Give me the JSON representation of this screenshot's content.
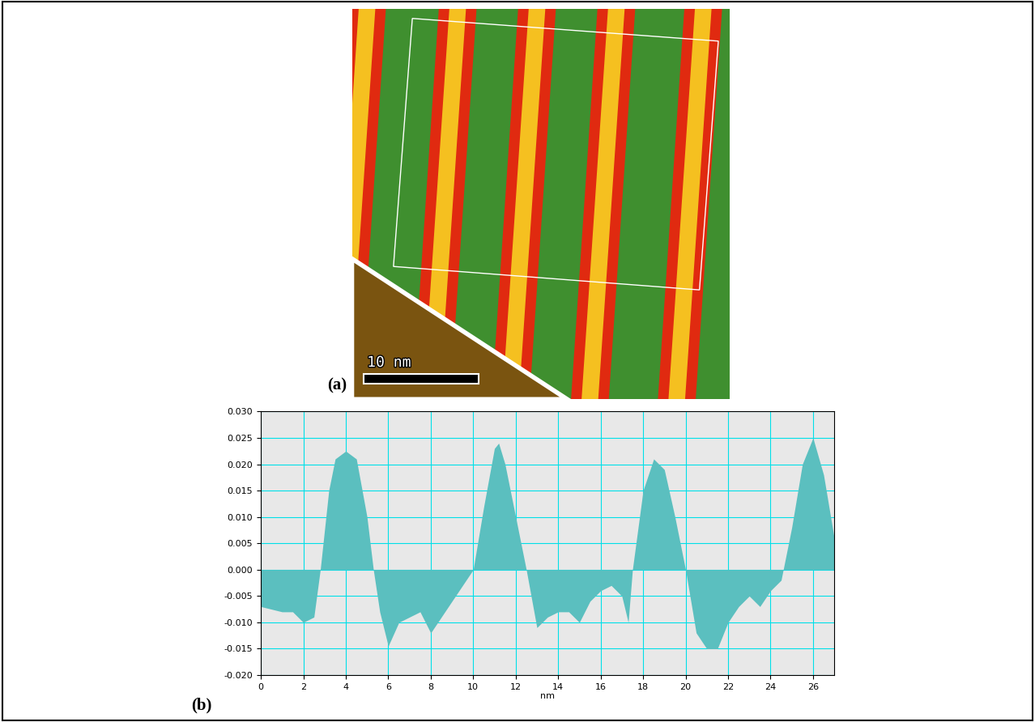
{
  "image_panel": {
    "label": "(a)",
    "scale_bar": "10 nm"
  },
  "chart_data": {
    "type": "area",
    "label": "(b)",
    "x_label": "nm",
    "x": [
      0,
      0.5,
      1,
      1.5,
      2,
      2.5,
      2.8,
      3.2,
      3.5,
      4,
      4.5,
      5,
      5.3,
      5.6,
      6,
      6.5,
      7,
      7.5,
      8,
      8.5,
      9,
      9.5,
      10,
      10.5,
      11,
      11.2,
      11.5,
      12,
      12.5,
      13,
      13.5,
      14,
      14.5,
      15,
      15.5,
      16,
      16.5,
      17,
      17.3,
      17.5,
      18,
      18.5,
      19,
      19.5,
      20,
      20.5,
      21,
      21.5,
      22,
      22.5,
      23,
      23.5,
      24,
      24.5,
      25,
      25.5,
      26,
      26.5,
      27
    ],
    "values": [
      -0.007,
      -0.0075,
      -0.008,
      -0.008,
      -0.01,
      -0.009,
      0.0,
      0.015,
      0.021,
      0.0225,
      0.021,
      0.01,
      0.0,
      -0.008,
      -0.0145,
      -0.01,
      -0.009,
      -0.008,
      -0.012,
      -0.009,
      -0.006,
      -0.003,
      0.0,
      0.012,
      0.023,
      0.024,
      0.02,
      0.01,
      0.0,
      -0.011,
      -0.009,
      -0.008,
      -0.008,
      -0.01,
      -0.006,
      -0.004,
      -0.003,
      -0.005,
      -0.01,
      0.0,
      0.015,
      0.021,
      0.019,
      0.01,
      0.0,
      -0.012,
      -0.015,
      -0.015,
      -0.01,
      -0.007,
      -0.005,
      -0.007,
      -0.004,
      -0.002,
      0.008,
      0.02,
      0.025,
      0.018,
      0.006
    ],
    "color": "#5bbfbf",
    "xlim": [
      0,
      27
    ],
    "xticks": [
      0,
      2,
      4,
      6,
      8,
      10,
      12,
      14,
      16,
      18,
      20,
      22,
      24,
      26
    ],
    "ylim": [
      -0.02,
      0.03
    ],
    "yticks": [
      {
        "value": -0.02,
        "label": "-0.020"
      },
      {
        "value": -0.015,
        "label": "-0.015"
      },
      {
        "value": -0.01,
        "label": "-0.010"
      },
      {
        "value": -0.005,
        "label": "-0.005"
      },
      {
        "value": 0,
        "label": "0.000"
      },
      {
        "value": 0.005,
        "label": "0.005"
      },
      {
        "value": 0.01,
        "label": "0.010"
      },
      {
        "value": 0.015,
        "label": "0.015"
      },
      {
        "value": 0.02,
        "label": "0.020"
      },
      {
        "value": 0.025,
        "label": "0.025"
      },
      {
        "value": 0.03,
        "label": "0.030"
      }
    ],
    "grid": true
  }
}
